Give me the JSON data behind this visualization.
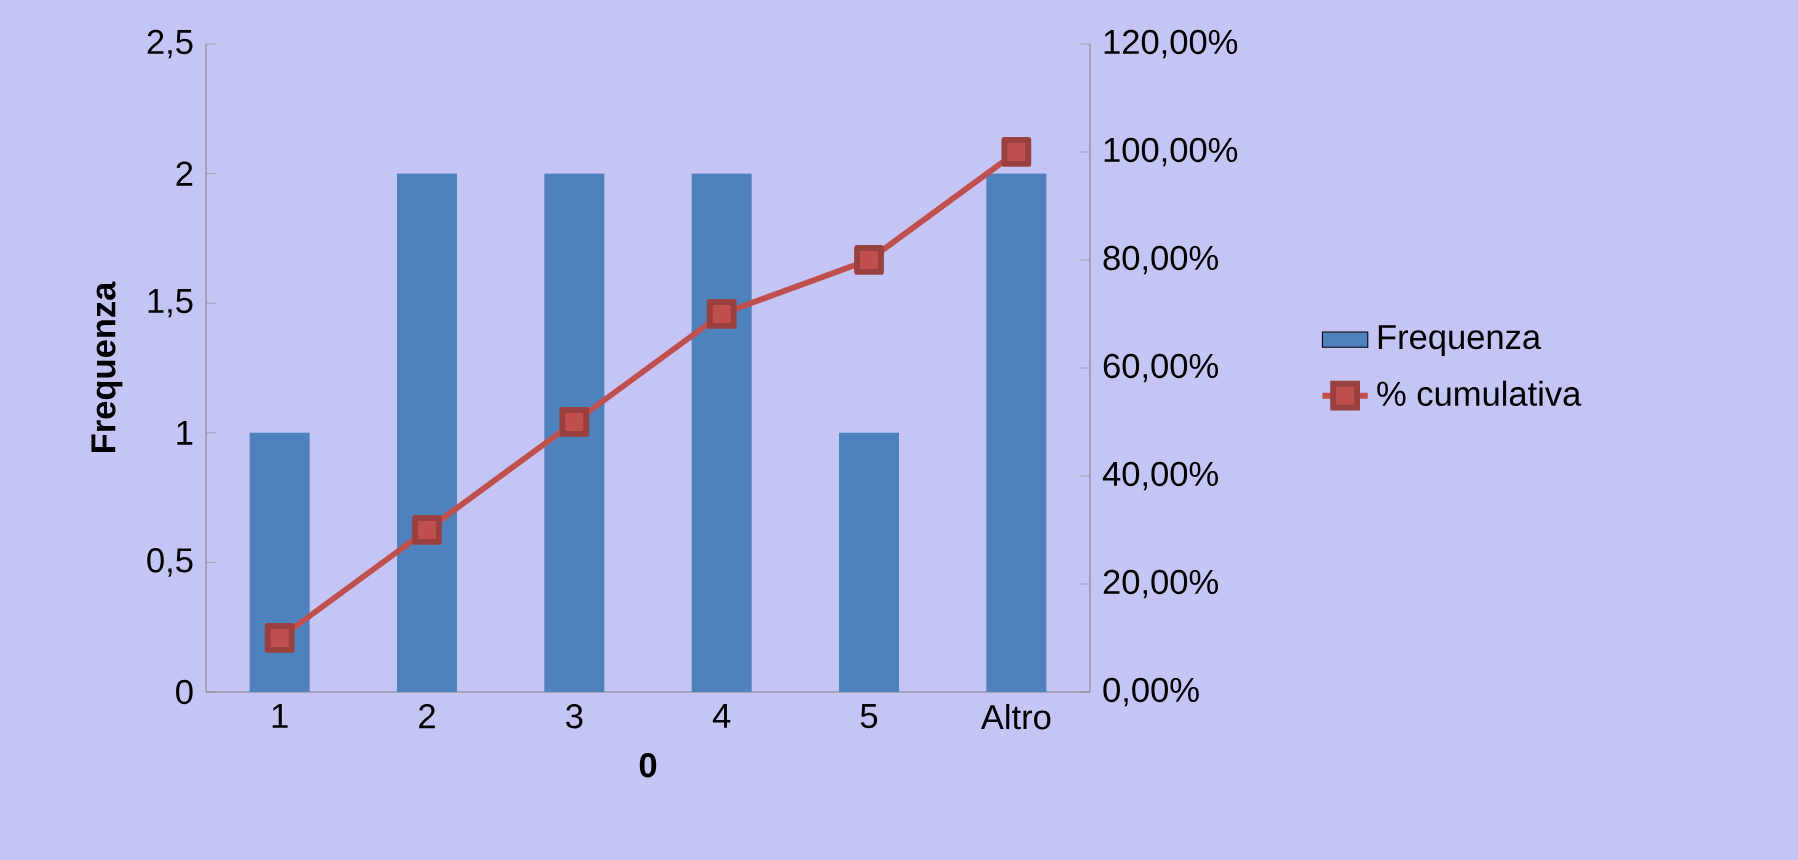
{
  "chart_data": {
    "type": "bar",
    "xlabel": "0",
    "ylabel": "Frequenza",
    "categories": [
      "1",
      "2",
      "3",
      "4",
      "5",
      "Altro"
    ],
    "series": [
      {
        "name": "Frequenza",
        "color": "#4f81bd",
        "values": [
          1,
          2,
          2,
          2,
          1,
          2
        ]
      },
      {
        "name": "% cumulativa",
        "type": "line",
        "axis": "y2",
        "color": "#c0504d",
        "marker": "square",
        "values": [
          10,
          30,
          50,
          70,
          80,
          100
        ]
      }
    ],
    "ylim": [
      0,
      2.5
    ],
    "yticks": [
      0,
      {
        "value": 0.5,
        "label": "0,5"
      },
      1,
      {
        "value": 1.5,
        "label": "1,5"
      },
      2,
      {
        "value": 2.5,
        "label": "2,5"
      }
    ],
    "y2lim": [
      0,
      120
    ],
    "y2ticks": [
      {
        "value": 0,
        "label": "0,00%"
      },
      {
        "value": 20,
        "label": "20,00%"
      },
      {
        "value": 40,
        "label": "40,00%"
      },
      {
        "value": 60,
        "label": "60,00%"
      },
      {
        "value": 80,
        "label": "80,00%"
      },
      {
        "value": 100,
        "label": "100,00%"
      },
      {
        "value": 120,
        "label": "120,00%"
      }
    ],
    "grid": false,
    "legend": "right"
  }
}
